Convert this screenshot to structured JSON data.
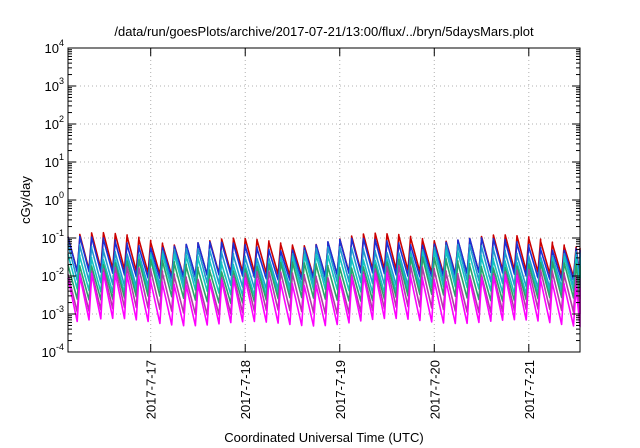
{
  "chart_data": {
    "type": "line",
    "title": "/data/run/goesPlots/archive/2017-07-21/13:00/flux/../bryn/5daysMars.plot",
    "xlabel": "Coordinated Universal Time (UTC)",
    "ylabel": "cGy/day",
    "yscale": "log",
    "ylim": [
      0.0001,
      10000
    ],
    "xlim": [
      "2017-07-16 03:00",
      "2017-07-21 13:00"
    ],
    "grid": true,
    "ytick_labels": [
      {
        "base": "10",
        "exp": "-4"
      },
      {
        "base": "10",
        "exp": "-3"
      },
      {
        "base": "10",
        "exp": "-2"
      },
      {
        "base": "10",
        "exp": "-1"
      },
      {
        "base": "10",
        "exp": "0"
      },
      {
        "base": "10",
        "exp": "1"
      },
      {
        "base": "10",
        "exp": "2"
      },
      {
        "base": "10",
        "exp": "3"
      },
      {
        "base": "10",
        "exp": "4"
      }
    ],
    "xticks": [
      "2017-7-17",
      "2017-7-18",
      "2017-7-19",
      "2017-7-20",
      "2017-7-21"
    ],
    "sawtooth_period_hours": 3,
    "series": [
      {
        "color": "#cc0000",
        "peak": 0.09,
        "trough": 0.012
      },
      {
        "color": "#1a2fd6",
        "peak": 0.07,
        "trough": 0.01
      },
      {
        "color": "#1f9ad0",
        "peak": 0.045,
        "trough": 0.006
      },
      {
        "color": "#14c4c0",
        "peak": 0.03,
        "trough": 0.004
      },
      {
        "color": "#2aa36a",
        "peak": 0.02,
        "trough": 0.0025
      },
      {
        "color": "#b23aa8",
        "peak": 0.012,
        "trough": 0.0012
      },
      {
        "color": "#ff00ff",
        "peak": 0.008,
        "trough": 0.0006
      }
    ]
  }
}
